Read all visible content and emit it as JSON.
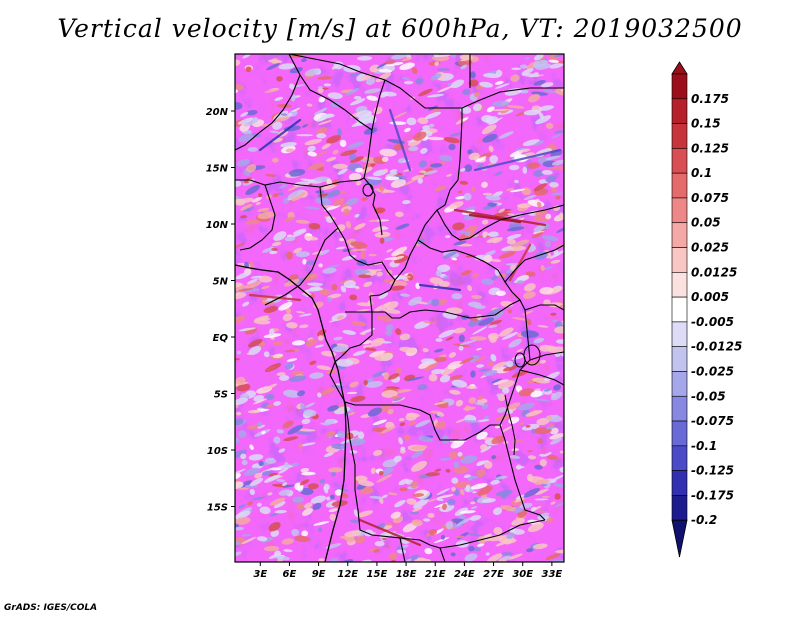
{
  "title": "Vertical velocity [m/s] at 600hPa, VT: 2019032500",
  "credit": "GrADS: IGES/COLA",
  "lat_labels": [
    "20N",
    "15N",
    "10N",
    "5N",
    "EQ",
    "5S",
    "10S",
    "15S"
  ],
  "lat_values": [
    20,
    15,
    10,
    5,
    0,
    -5,
    -10,
    -15
  ],
  "lon_labels": [
    "3E",
    "6E",
    "9E",
    "12E",
    "15E",
    "18E",
    "21E",
    "24E",
    "27E",
    "30E",
    "33E"
  ],
  "lon_values": [
    3,
    6,
    9,
    12,
    15,
    18,
    21,
    24,
    27,
    30,
    33
  ],
  "colorbar": {
    "levels": [
      "0.175",
      "0.15",
      "0.125",
      "0.1",
      "0.075",
      "0.05",
      "0.025",
      "0.0125",
      "0.005",
      "-0.005",
      "-0.0125",
      "-0.025",
      "-0.05",
      "-0.075",
      "-0.1",
      "-0.125",
      "-0.175",
      "-0.2"
    ],
    "colors": [
      "#9c0f1a",
      "#b5202a",
      "#c8343c",
      "#d84e52",
      "#e56a6b",
      "#ee8888",
      "#f4a9a6",
      "#f8c6c3",
      "#fbe2e0",
      "#ffffff",
      "#dcdcf6",
      "#c3c3f0",
      "#a6a6ea",
      "#8888e2",
      "#6a6ad6",
      "#4b4bc8",
      "#3030b0",
      "#1c1c8e",
      "#10106e"
    ]
  },
  "colors": {
    "positive_accent": "#c8343c",
    "negative_accent": "#4b4bc8",
    "border": "#000000"
  }
}
